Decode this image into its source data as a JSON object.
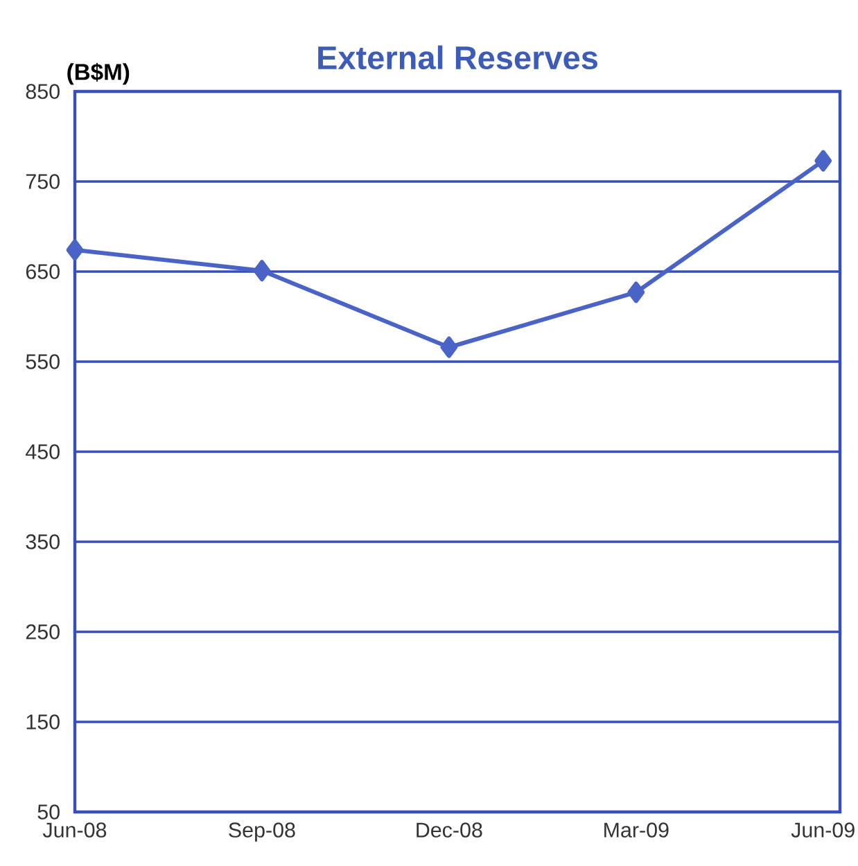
{
  "chart_data": {
    "type": "line",
    "title": "External Reserves",
    "ylabel": "(B$M)",
    "categories": [
      "Jun-08",
      "Sep-08",
      "Dec-08",
      "Mar-09",
      "Jun-09"
    ],
    "series": [
      {
        "color": "#4a63c6",
        "values": [
          674,
          651,
          566,
          627,
          773
        ]
      }
    ],
    "ylim": [
      50,
      850
    ],
    "yticks": [
      50,
      150,
      250,
      350,
      450,
      550,
      650,
      750,
      850
    ],
    "grid": "y",
    "marker": "diamond",
    "line_style": "solid"
  }
}
